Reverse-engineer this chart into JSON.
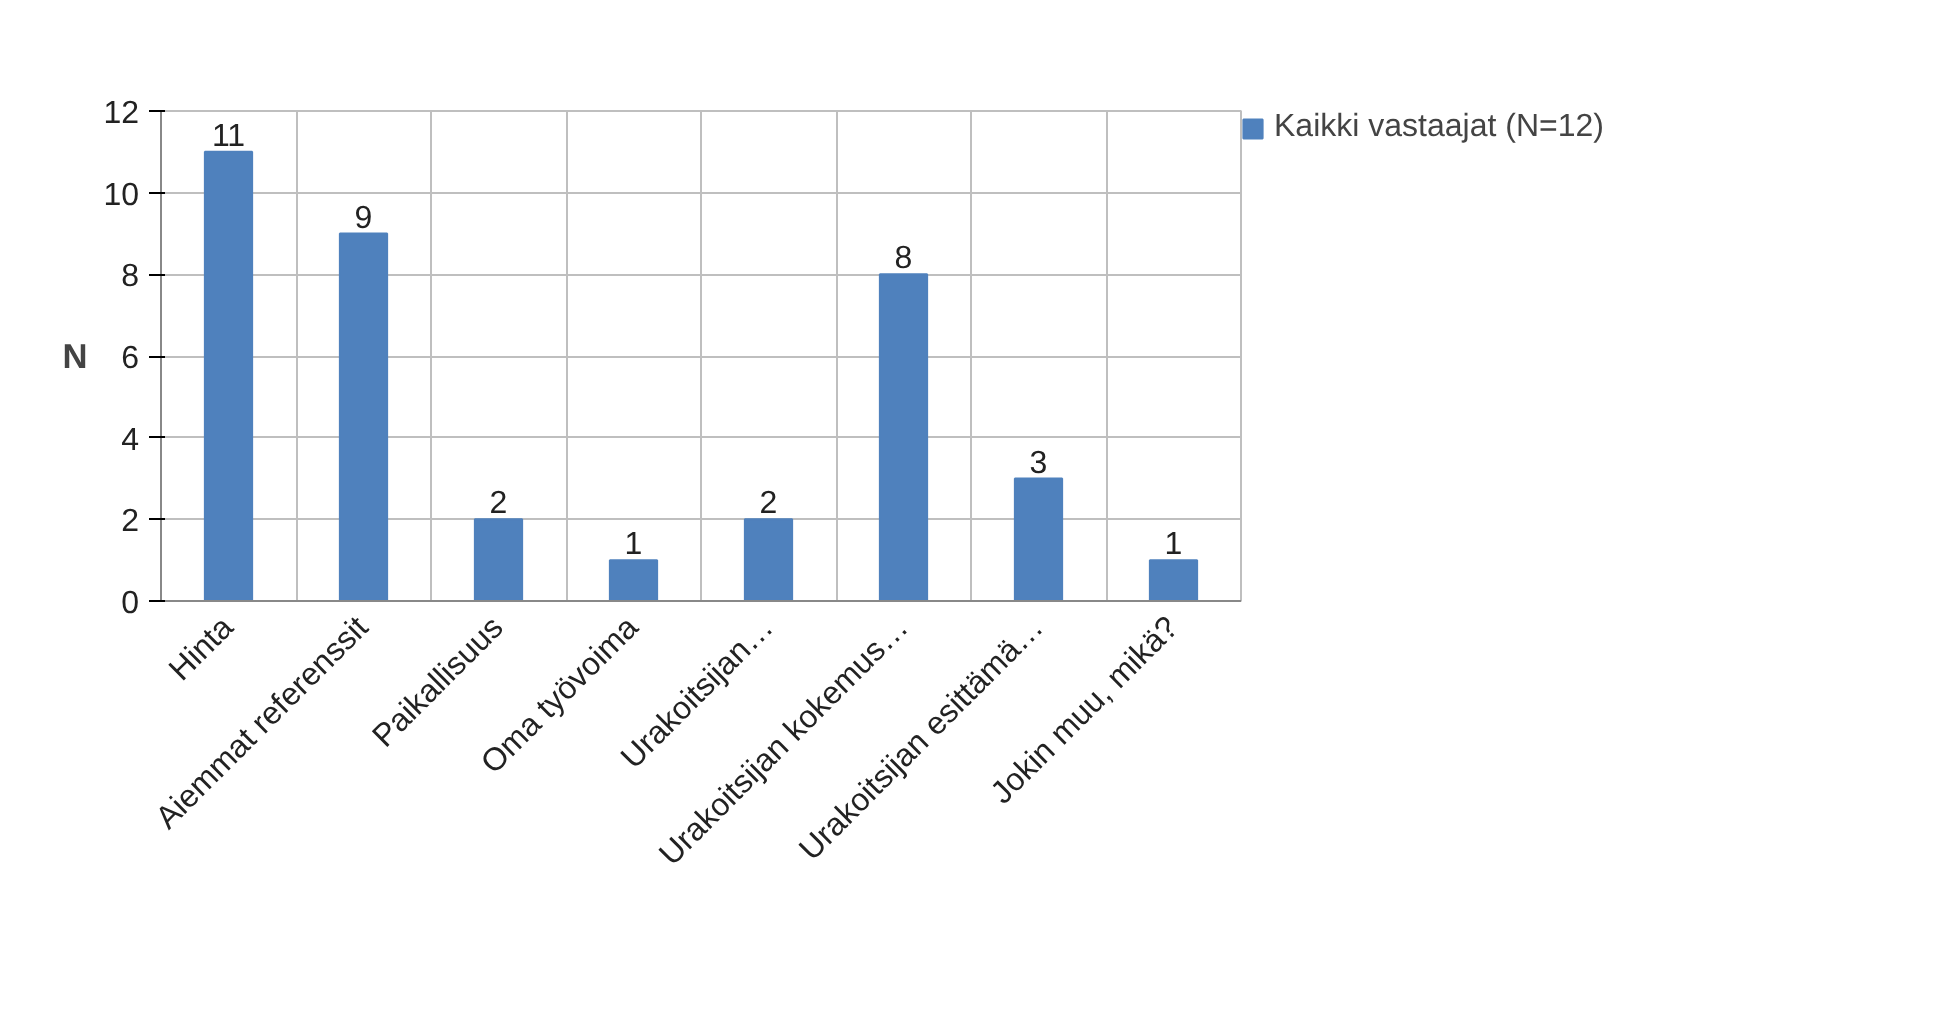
{
  "chart_data": {
    "type": "bar",
    "ylabel": "N",
    "categories": [
      "Hinta",
      "Aiemmat referenssit",
      "Paikallisuus",
      "Oma työvoima",
      "Urakoitsijan…",
      "Urakoitsijan kokemus…",
      "Urakoitsijan esittämä…",
      "Jokin muu, mikä?"
    ],
    "series": [
      {
        "name": "Kaikki vastaajat (N=12)",
        "color": "#4f81bd",
        "values": [
          11,
          9,
          2,
          1,
          2,
          8,
          3,
          1
        ]
      }
    ],
    "ylim": [
      0,
      12
    ],
    "yticks": [
      0,
      2,
      4,
      6,
      8,
      10,
      12
    ],
    "grid": true,
    "legend": "top right",
    "data_labels": true
  }
}
